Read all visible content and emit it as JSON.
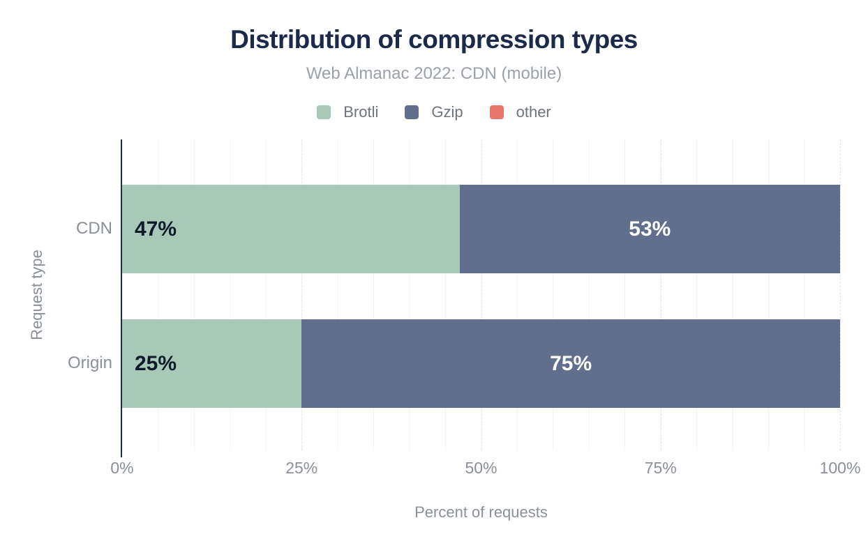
{
  "header": {
    "title": "Distribution of compression types",
    "subtitle": "Web Almanac 2022: CDN (mobile)"
  },
  "legend": [
    {
      "label": "Brotli",
      "color": "#a8c9b8"
    },
    {
      "label": "Gzip",
      "color": "#60708c"
    },
    {
      "label": "other",
      "color": "#e8776b"
    }
  ],
  "chart_data": {
    "type": "bar",
    "orientation": "horizontal",
    "stacked": true,
    "title": "Distribution of compression types",
    "subtitle": "Web Almanac 2022: CDN (mobile)",
    "xlabel": "Percent of requests",
    "ylabel": "Request type",
    "categories": [
      "CDN",
      "Origin"
    ],
    "series": [
      {
        "name": "Brotli",
        "color": "#a8c9b8",
        "values": [
          47,
          25
        ],
        "label_color": "#0f1a2b",
        "label_align": "start"
      },
      {
        "name": "Gzip",
        "color": "#60708c",
        "values": [
          53,
          75
        ],
        "label_color": "#ffffff",
        "label_align": "center"
      },
      {
        "name": "other",
        "color": "#e8776b",
        "values": [
          0,
          0
        ],
        "label_color": "#0f1a2b",
        "label_align": "center"
      }
    ],
    "data_labels": [
      [
        "47%",
        "53%"
      ],
      [
        "25%",
        "75%"
      ]
    ],
    "xlim": [
      0,
      100
    ],
    "x_ticks": [
      "0%",
      "25%",
      "50%",
      "75%",
      "100%"
    ],
    "grid": true,
    "minor_grid_step_pct": 5,
    "major_grid_step_pct": 25,
    "legend_position": "top"
  }
}
